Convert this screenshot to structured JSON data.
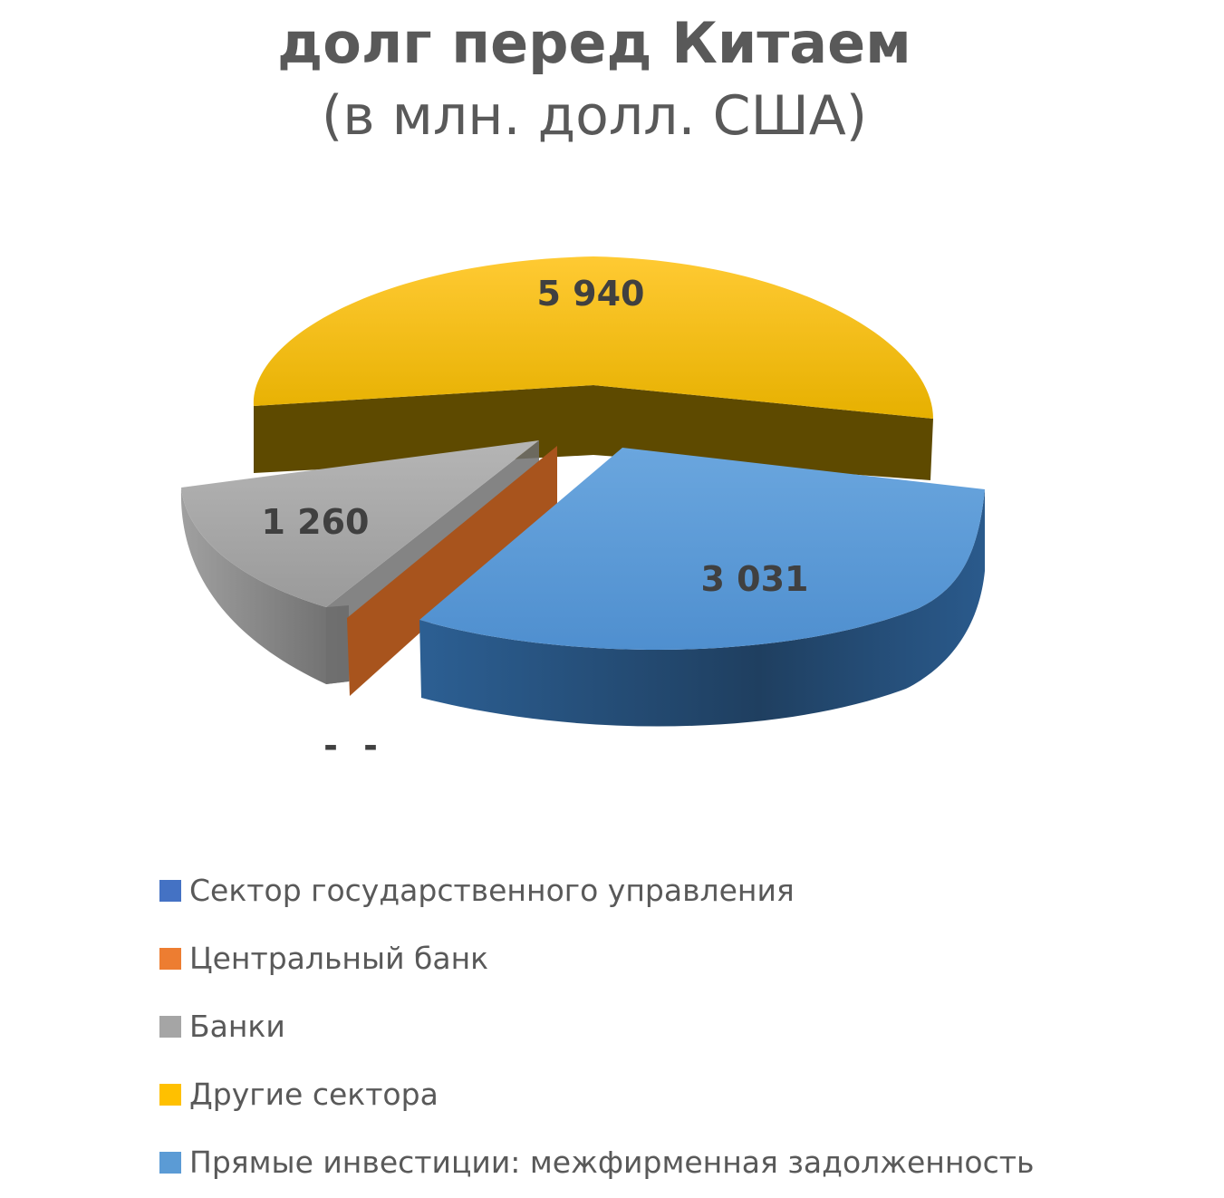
{
  "chart_data": {
    "type": "pie",
    "title": "долг перед Китаем",
    "subtitle": "(в млн. долл. США)",
    "slices": [
      {
        "name": "Сектор государственного управления",
        "value": 0,
        "label": "-",
        "color": "#4472C4"
      },
      {
        "name": "Центральный банк",
        "value": 0,
        "label": "-",
        "color": "#ED7D31"
      },
      {
        "name": "Банки",
        "value": 1260,
        "label": "1 260",
        "color": "#A5A5A5"
      },
      {
        "name": "Другие сектора",
        "value": 5940,
        "label": "5 940",
        "color": "#FFC000"
      },
      {
        "name": "Прямые инвестиции: межфирменная задолженность",
        "value": 3031,
        "label": "3 031",
        "color": "#5B9BD5"
      }
    ],
    "legend_position": "bottom"
  }
}
